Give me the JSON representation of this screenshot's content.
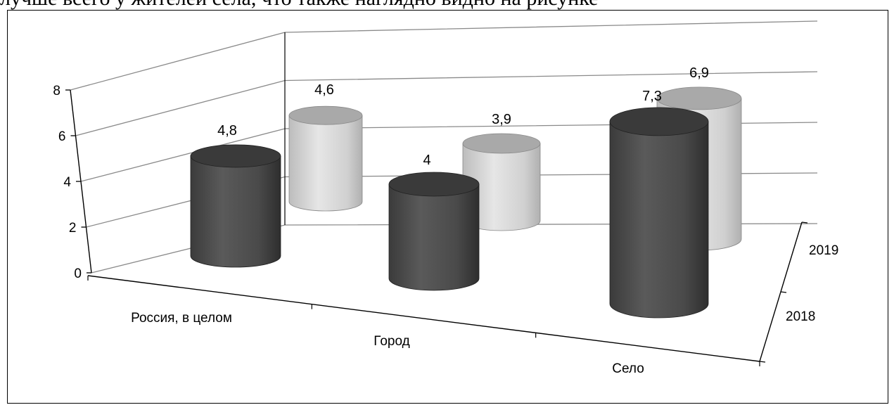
{
  "top_text": "лучше всего у жителей села, что также наглядно видно на рисунке",
  "chart_data": {
    "type": "bar",
    "style": "3d-cylinder",
    "categories": [
      "Россия, в целом",
      "Город",
      "Село"
    ],
    "series": [
      {
        "name": "2018",
        "values": [
          4.8,
          4,
          7.3
        ],
        "labels": [
          "4,8",
          "4",
          "7,3"
        ],
        "color": "#4a4a4a"
      },
      {
        "name": "2019",
        "values": [
          4.6,
          3.9,
          6.9
        ],
        "labels": [
          "4,6",
          "3,9",
          "6,9"
        ],
        "color": "#c4c4c4"
      }
    ],
    "y_ticks": [
      "0",
      "2",
      "4",
      "6",
      "8"
    ],
    "ylim": [
      0,
      8
    ],
    "grid": true,
    "legend": "none"
  }
}
